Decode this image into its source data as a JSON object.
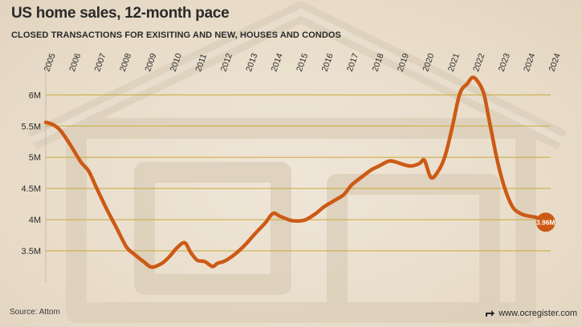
{
  "header": {
    "title": "US home sales, 12-month pace",
    "subtitle": "CLOSED TRANSACTIONS FOR EXISITING AND NEW, HOUSES AND CONDOS"
  },
  "footer": {
    "source": "Source: Attom",
    "credit": "www.ocregister.com"
  },
  "colors": {
    "line": "#cc5a15",
    "grid": "#c9a93a",
    "text": "#2a2a2a"
  },
  "chart_data": {
    "type": "line",
    "title": "US home sales, 12-month pace",
    "subtitle": "CLOSED TRANSACTIONS FOR EXISITING AND NEW, HOUSES AND CONDOS",
    "xlabel": "",
    "ylabel": "",
    "grid": true,
    "ylim": [
      3.0,
      6.3
    ],
    "xlim": [
      2005.0,
      2025.0
    ],
    "x_ticks": [
      "2005",
      "2006",
      "2007",
      "2008",
      "2009",
      "2010",
      "2011",
      "2012",
      "2013",
      "2014",
      "2015",
      "2016",
      "2017",
      "2018",
      "2019",
      "2020",
      "2021",
      "2022",
      "2023",
      "2024",
      "2024"
    ],
    "y_ticks": [
      {
        "value": 3.5,
        "label": "3.5M"
      },
      {
        "value": 4.0,
        "label": "4M"
      },
      {
        "value": 4.5,
        "label": "4.5M"
      },
      {
        "value": 5.0,
        "label": "5M"
      },
      {
        "value": 5.5,
        "label": "5.5M"
      },
      {
        "value": 6.0,
        "label": "6M"
      }
    ],
    "end_label": "3.96M",
    "series": [
      {
        "x": [
          2005.0,
          2005.3,
          2005.6,
          2006.0,
          2006.4,
          2006.7,
          2007.0,
          2007.4,
          2007.8,
          2008.2,
          2008.5,
          2008.9,
          2009.2,
          2009.6,
          2009.9,
          2010.2,
          2010.5,
          2010.75,
          2011.0,
          2011.3,
          2011.6,
          2011.8,
          2012.1,
          2012.5,
          2012.9,
          2013.3,
          2013.7,
          2014.0,
          2014.3,
          2014.7,
          2015.0,
          2015.3,
          2015.7,
          2016.0,
          2016.4,
          2016.8,
          2017.1,
          2017.5,
          2017.9,
          2018.2,
          2018.6,
          2018.9,
          2019.2,
          2019.5,
          2019.8,
          2020.0,
          2020.25,
          2020.5,
          2020.8,
          2021.1,
          2021.4,
          2021.7,
          2021.9,
          2022.1,
          2022.35,
          2022.6,
          2022.9,
          2023.2,
          2023.5,
          2023.8,
          2024.1,
          2024.4,
          2024.6,
          2024.8
        ],
        "values": [
          5.56,
          5.52,
          5.42,
          5.18,
          4.92,
          4.78,
          4.52,
          4.18,
          3.87,
          3.56,
          3.45,
          3.32,
          3.24,
          3.3,
          3.41,
          3.55,
          3.63,
          3.47,
          3.35,
          3.33,
          3.25,
          3.3,
          3.34,
          3.45,
          3.6,
          3.78,
          3.95,
          4.1,
          4.05,
          3.99,
          3.98,
          4.0,
          4.1,
          4.2,
          4.3,
          4.4,
          4.55,
          4.68,
          4.8,
          4.86,
          4.94,
          4.92,
          4.88,
          4.86,
          4.9,
          4.95,
          4.68,
          4.75,
          5.0,
          5.48,
          6.02,
          6.18,
          6.28,
          6.22,
          6.02,
          5.52,
          4.92,
          4.48,
          4.2,
          4.1,
          4.06,
          4.04,
          4.0,
          3.96
        ]
      }
    ]
  }
}
